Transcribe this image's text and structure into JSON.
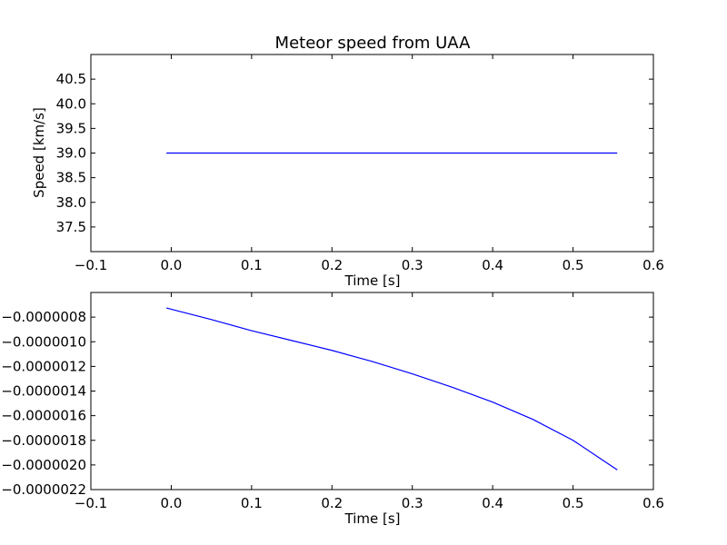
{
  "chart_data": [
    {
      "type": "line",
      "title": "Meteor speed from  UAA",
      "xlabel": "Time [s]",
      "ylabel": "Speed [km/s]",
      "xlim": [
        -0.1,
        0.6
      ],
      "ylim": [
        37.0,
        41.0
      ],
      "xticks": [
        "−0.1",
        "0.0",
        "0.1",
        "0.2",
        "0.3",
        "0.4",
        "0.5",
        "0.6"
      ],
      "yticks": [
        "37.5",
        "38.0",
        "38.5",
        "39.0",
        "39.5",
        "40.0",
        "40.5"
      ],
      "grid": false,
      "series": [
        {
          "color": "#0000ff",
          "x": [
            -0.006,
            0.555
          ],
          "y": [
            39.0,
            39.0
          ]
        }
      ]
    },
    {
      "type": "line",
      "title": "",
      "xlabel": "Time [s]",
      "ylabel": "",
      "xlim": [
        -0.1,
        0.6
      ],
      "ylim": [
        -2.2e-06,
        -6e-07
      ],
      "xticks": [
        "−0.1",
        "0.0",
        "0.1",
        "0.2",
        "0.3",
        "0.4",
        "0.5",
        "0.6"
      ],
      "yticks": [
        "−0.0000008",
        "−0.0000010",
        "−0.0000012",
        "−0.0000014",
        "−0.0000016",
        "−0.0000018",
        "−0.0000020",
        "−0.0000022"
      ],
      "grid": false,
      "series": [
        {
          "color": "#0000ff",
          "x": [
            -0.006,
            0.05,
            0.1,
            0.15,
            0.2,
            0.25,
            0.3,
            0.35,
            0.4,
            0.45,
            0.5,
            0.555
          ],
          "y": [
            -7.26e-07,
            -8.2e-07,
            -9.1e-07,
            -9.9e-07,
            -1.07e-06,
            -1.16e-06,
            -1.26e-06,
            -1.37e-06,
            -1.49e-06,
            -1.63e-06,
            -1.8e-06,
            -2.04e-06
          ]
        }
      ]
    }
  ]
}
